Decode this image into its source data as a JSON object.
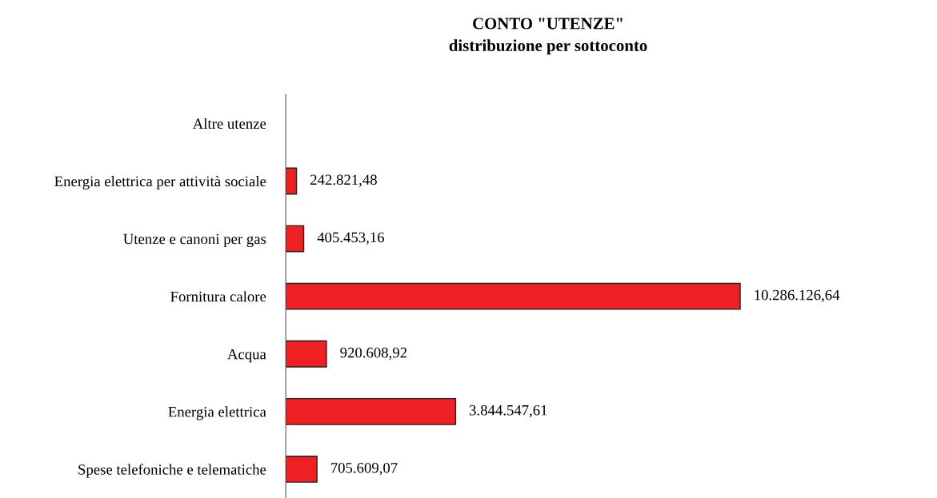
{
  "chart_data": {
    "type": "bar",
    "orientation": "horizontal",
    "title": "CONTO \"UTENZE\"\ndistribuzione per sottoconto",
    "categories": [
      "Altre utenze",
      "Energia elettrica per attività sociale",
      "Utenze e canoni per gas",
      "Fornitura calore",
      "Acqua",
      "Energia elettrica",
      "Spese telefoniche e telematiche"
    ],
    "values": [
      null,
      242821.48,
      405453.16,
      10286126.64,
      920608.92,
      3844547.61,
      705609.07
    ],
    "value_labels": [
      null,
      "242.821,48",
      "405.453,16",
      "10.286.126,64",
      "920.608,92",
      "3.844.547,61",
      "705.609,07"
    ],
    "color": "#ee2024",
    "grid": false,
    "legend": false
  }
}
